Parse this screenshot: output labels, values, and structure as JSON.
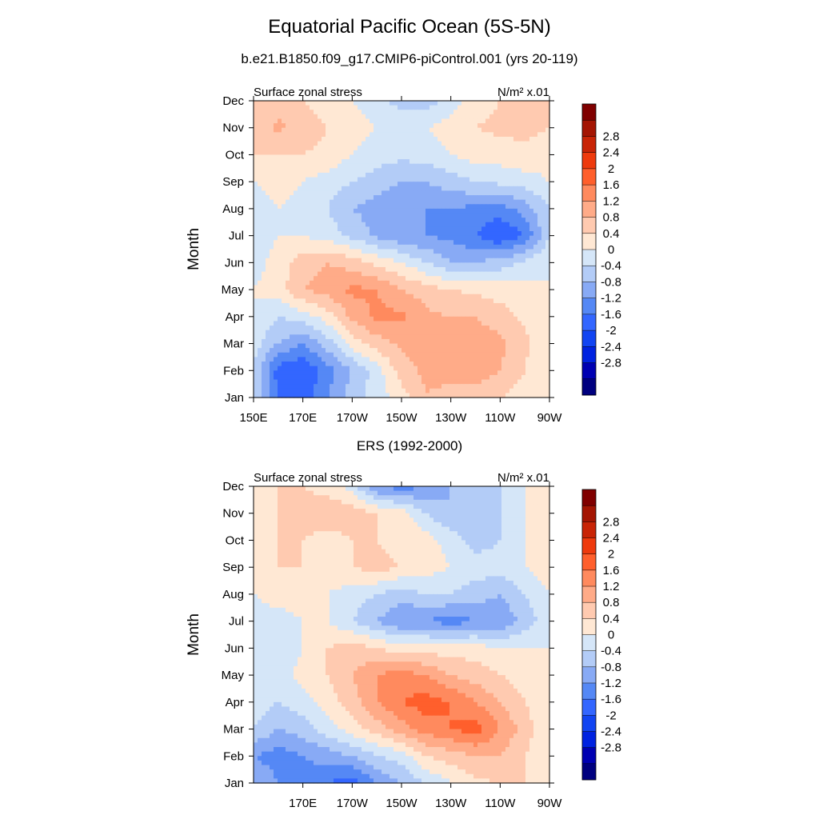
{
  "figure": {
    "title": "Equatorial Pacific Ocean (5S-5N)",
    "panel1_title": "b.e21.B1850.f09_g17.CMIP6-piControl.001 (yrs 20-119)",
    "panel2_title": "ERS (1992-2000)"
  },
  "colors": {
    "levels": [
      "#00007f",
      "#0000b2",
      "#0022e0",
      "#1144f2",
      "#3366ff",
      "#5588f5",
      "#88aaf5",
      "#b3ccf7",
      "#d5e6f8",
      "#ffe8d4",
      "#ffcab0",
      "#ffab88",
      "#ff8a5e",
      "#ff5f2c",
      "#ee3a0d",
      "#c82406",
      "#a41503",
      "#800000"
    ]
  },
  "chart_data": [
    {
      "type": "heatmap",
      "left_label": "Surface zonal stress",
      "right_label": "N/m² x.01",
      "ylabel": "Month",
      "months": [
        "Jan",
        "Feb",
        "Mar",
        "Apr",
        "May",
        "Jun",
        "Jul",
        "Aug",
        "Sep",
        "Oct",
        "Nov",
        "Dec"
      ],
      "x_ticks": [
        "150E",
        "170E",
        "170W",
        "150W",
        "130W",
        "110W",
        "90W"
      ],
      "x_tick_lon": [
        150,
        170,
        190,
        210,
        230,
        250,
        270
      ],
      "x_range": [
        150,
        270
      ],
      "colorbar_labels": [
        "2.8",
        "2.4",
        "2",
        "1.6",
        "1.2",
        "0.8",
        "0.4",
        "0",
        "-0.4",
        "-0.8",
        "-1.2",
        "-1.6",
        "-2",
        "-2.4",
        "-2.8"
      ],
      "lon": [
        150,
        160,
        170,
        180,
        190,
        200,
        210,
        220,
        230,
        240,
        250,
        260,
        270
      ],
      "z": [
        [
          -0.4,
          -1.6,
          -1.8,
          -1.2,
          -0.6,
          -0.2,
          0.2,
          0.8,
          0.6,
          0.6,
          0.4,
          0.2,
          0.0
        ],
        [
          -0.4,
          -1.8,
          -2.0,
          -1.4,
          -0.8,
          -0.2,
          0.6,
          0.9,
          1.0,
          1.0,
          0.8,
          0.4,
          0.0
        ],
        [
          -0.2,
          -0.8,
          -1.2,
          -0.6,
          0.2,
          0.6,
          0.9,
          1.0,
          1.1,
          1.0,
          0.9,
          0.5,
          0.0
        ],
        [
          0.0,
          -0.4,
          -0.2,
          0.2,
          0.9,
          1.3,
          1.3,
          0.9,
          0.8,
          0.8,
          0.6,
          0.3,
          0.0
        ],
        [
          0.0,
          0.2,
          0.8,
          1.0,
          1.3,
          1.2,
          0.8,
          0.6,
          0.4,
          0.3,
          0.2,
          0.1,
          0.0
        ],
        [
          -0.2,
          0.2,
          0.6,
          0.8,
          0.6,
          0.3,
          0.0,
          -0.4,
          -0.8,
          -0.8,
          -0.6,
          -0.3,
          0.0
        ],
        [
          -0.3,
          0.0,
          0.0,
          -0.2,
          -0.5,
          -0.9,
          -1.1,
          -1.2,
          -1.3,
          -1.6,
          -2.0,
          -1.6,
          -0.4
        ],
        [
          -0.2,
          0.0,
          -0.2,
          -0.4,
          -0.8,
          -1.0,
          -1.2,
          -1.2,
          -1.2,
          -1.3,
          -1.4,
          -1.0,
          -0.4
        ],
        [
          0.0,
          0.2,
          0.0,
          -0.2,
          -0.4,
          -0.6,
          -0.8,
          -0.8,
          -0.6,
          -0.4,
          -0.3,
          -0.2,
          0.0
        ],
        [
          0.4,
          0.4,
          0.4,
          0.3,
          0.0,
          -0.2,
          -0.3,
          -0.2,
          0.0,
          0.2,
          0.2,
          0.3,
          0.2
        ],
        [
          0.4,
          0.9,
          0.6,
          0.4,
          0.2,
          0.0,
          0.0,
          0.0,
          0.2,
          0.4,
          0.5,
          0.5,
          0.4
        ],
        [
          0.4,
          0.6,
          0.4,
          0.2,
          0.0,
          -0.2,
          -0.6,
          -0.6,
          -0.2,
          0.2,
          0.4,
          0.4,
          0.4
        ]
      ]
    },
    {
      "type": "heatmap",
      "left_label": "Surface zonal stress",
      "right_label": "N/m² x.01",
      "ylabel": "Month",
      "months": [
        "Jan",
        "Feb",
        "Mar",
        "Apr",
        "May",
        "Jun",
        "Jul",
        "Aug",
        "Sep",
        "Oct",
        "Nov",
        "Dec"
      ],
      "x_ticks": [
        "170E",
        "170W",
        "150W",
        "130W",
        "110W",
        "90W"
      ],
      "x_tick_lon": [
        170,
        190,
        210,
        230,
        250,
        270
      ],
      "x_range": [
        150,
        270
      ],
      "colorbar_labels": [
        "2.8",
        "2.4",
        "2",
        "1.6",
        "1.2",
        "0.8",
        "0.4",
        "0",
        "-0.4",
        "-0.8",
        "-1.2",
        "-1.6",
        "-2",
        "-2.4",
        "-2.8"
      ],
      "lon": [
        150,
        160,
        170,
        180,
        190,
        200,
        210,
        220,
        230,
        240,
        250,
        260,
        270
      ],
      "z": [
        [
          -0.8,
          -1.2,
          -1.4,
          -1.6,
          -1.8,
          -1.2,
          -0.8,
          -0.4,
          0.0,
          0.3,
          0.4,
          0.4,
          0.2
        ],
        [
          -1.2,
          -1.4,
          -1.2,
          -1.0,
          -0.8,
          -0.4,
          -0.2,
          0.4,
          0.6,
          0.8,
          0.8,
          0.4,
          0.0
        ],
        [
          -0.4,
          -0.8,
          -0.6,
          -0.2,
          0.2,
          0.6,
          1.0,
          1.4,
          1.6,
          1.8,
          1.2,
          0.6,
          0.0
        ],
        [
          -0.2,
          -0.4,
          -0.2,
          0.2,
          0.6,
          1.2,
          1.6,
          1.8,
          1.6,
          1.2,
          0.8,
          0.4,
          0.2
        ],
        [
          0.0,
          -0.2,
          0.2,
          0.4,
          0.8,
          1.2,
          1.4,
          1.2,
          0.8,
          0.6,
          0.4,
          0.2,
          0.2
        ],
        [
          -0.2,
          -0.4,
          0.0,
          0.4,
          0.6,
          0.4,
          0.2,
          0.2,
          0.2,
          0.2,
          0.0,
          0.0,
          0.0
        ],
        [
          -0.2,
          -0.2,
          0.0,
          0.0,
          -0.4,
          -0.8,
          -1.2,
          -1.2,
          -1.4,
          -1.2,
          -1.2,
          -0.6,
          -0.2
        ],
        [
          0.0,
          0.2,
          0.2,
          0.0,
          -0.2,
          -0.4,
          -0.6,
          -0.4,
          -0.4,
          -0.6,
          -0.8,
          -0.4,
          0.0
        ],
        [
          0.0,
          0.4,
          0.4,
          0.2,
          0.4,
          0.6,
          0.4,
          0.2,
          0.0,
          -0.2,
          -0.2,
          0.0,
          0.2
        ],
        [
          0.2,
          0.4,
          0.4,
          0.2,
          0.4,
          0.4,
          0.2,
          0.2,
          -0.2,
          -0.6,
          -0.4,
          0.0,
          0.2
        ],
        [
          0.2,
          0.4,
          0.6,
          0.8,
          0.6,
          0.4,
          0.2,
          -0.4,
          -0.8,
          -0.6,
          -0.4,
          0.0,
          0.2
        ],
        [
          0.2,
          0.4,
          0.4,
          0.2,
          -0.2,
          -1.2,
          -1.4,
          -1.2,
          -0.8,
          -0.6,
          -0.4,
          0.0,
          0.2
        ]
      ]
    }
  ]
}
